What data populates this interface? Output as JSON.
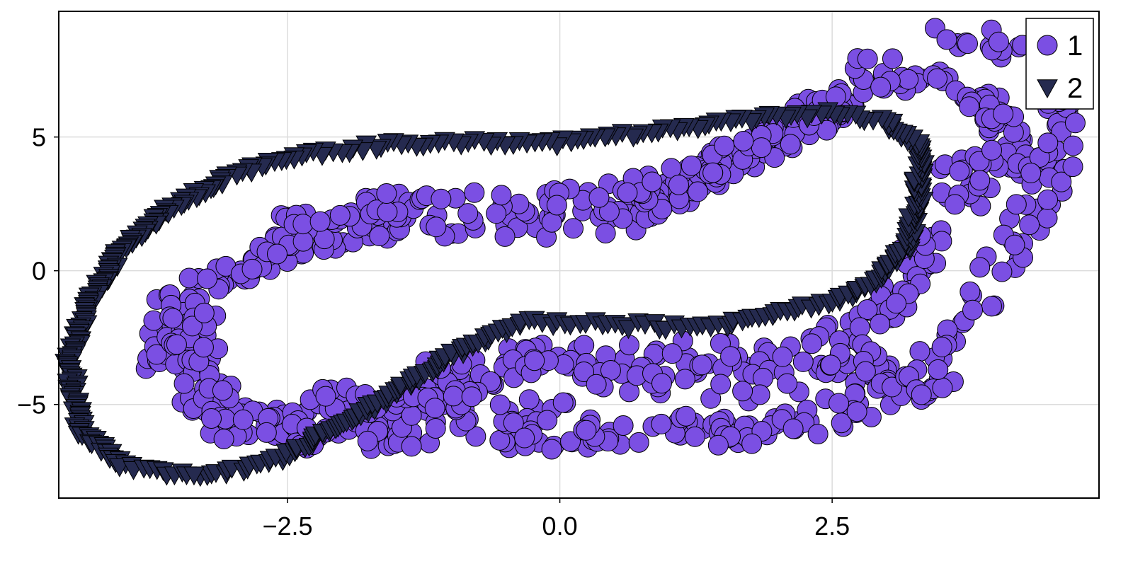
{
  "chart_data": {
    "type": "scatter",
    "title": "",
    "xlabel": "",
    "ylabel": "",
    "xlim": [
      -4.6,
      4.95
    ],
    "ylim": [
      -8.5,
      9.7
    ],
    "x_ticks": [
      -2.5,
      0.0,
      2.5
    ],
    "x_tick_labels": [
      "−2.5",
      "0.0",
      "2.5"
    ],
    "y_ticks": [
      -5,
      0,
      5
    ],
    "y_tick_labels": [
      "−5",
      "0",
      "5"
    ],
    "grid": true,
    "legend_position": "top-right",
    "series": [
      {
        "name": "1",
        "marker": "circle",
        "color": "#7b4fe3",
        "shapes": [
          {
            "kind": "band",
            "n": 240,
            "width": 0.35,
            "points": [
              [
                -3.6,
                -3.6
              ],
              [
                -3.6,
                -2.3
              ],
              [
                -3.5,
                -1.0
              ],
              [
                -3.0,
                0.0
              ],
              [
                -2.5,
                0.8
              ],
              [
                -1.8,
                1.5
              ],
              [
                -1.0,
                1.8
              ],
              [
                0.0,
                1.7
              ],
              [
                0.6,
                2.0
              ],
              [
                1.2,
                3.2
              ],
              [
                1.7,
                4.3
              ],
              [
                2.3,
                5.7
              ],
              [
                2.6,
                6.4
              ]
            ]
          },
          {
            "kind": "band",
            "n": 200,
            "width": 0.3,
            "points": [
              [
                -2.8,
                -0.3
              ],
              [
                -2.5,
                1.6
              ],
              [
                -2.0,
                2.2
              ],
              [
                -1.2,
                2.6
              ],
              [
                -0.3,
                2.6
              ],
              [
                0.5,
                2.9
              ],
              [
                1.1,
                3.5
              ],
              [
                1.7,
                4.6
              ],
              [
                2.2,
                5.8
              ],
              [
                2.7,
                6.7
              ],
              [
                3.3,
                7.3
              ],
              [
                3.8,
                6.6
              ],
              [
                4.1,
                5.2
              ],
              [
                4.3,
                3.6
              ]
            ]
          },
          {
            "kind": "band",
            "n": 90,
            "width": 0.3,
            "points": [
              [
                2.6,
                7.7
              ],
              [
                3.2,
                8.6
              ],
              [
                3.8,
                8.8
              ],
              [
                4.3,
                8.0
              ],
              [
                4.6,
                6.4
              ],
              [
                4.6,
                4.8
              ],
              [
                4.4,
                3.0
              ],
              [
                4.2,
                1.3
              ],
              [
                4.0,
                -0.4
              ],
              [
                3.8,
                -1.8
              ],
              [
                3.6,
                -2.6
              ],
              [
                3.4,
                -3.5
              ]
            ]
          },
          {
            "kind": "band",
            "n": 70,
            "width": 0.4,
            "points": [
              [
                3.8,
                4.5
              ],
              [
                3.7,
                2.7
              ],
              [
                3.4,
                0.8
              ],
              [
                3.1,
                -0.8
              ],
              [
                2.8,
                -2.0
              ],
              [
                2.5,
                -2.5
              ],
              [
                2.2,
                -2.8
              ]
            ]
          },
          {
            "kind": "band",
            "n": 160,
            "width": 0.35,
            "points": [
              [
                -3.4,
                -1.5
              ],
              [
                -3.3,
                -3.5
              ],
              [
                -3.2,
                -5.4
              ],
              [
                -2.5,
                -5.8
              ],
              [
                -1.5,
                -5.2
              ],
              [
                -0.5,
                -3.4
              ],
              [
                0.5,
                -3.1
              ],
              [
                1.5,
                -3.3
              ],
              [
                2.0,
                -3.0
              ]
            ]
          },
          {
            "kind": "band",
            "n": 90,
            "width": 0.6,
            "points": [
              [
                -1.4,
                -4.5
              ],
              [
                -0.5,
                -4.2
              ],
              [
                0.5,
                -4.2
              ],
              [
                1.5,
                -4.0
              ],
              [
                2.3,
                -3.7
              ],
              [
                2.9,
                -2.9
              ]
            ]
          },
          {
            "kind": "band",
            "n": 160,
            "width": 0.35,
            "points": [
              [
                -3.2,
                -5.8
              ],
              [
                -2.5,
                -6.1
              ],
              [
                -1.5,
                -6.2
              ],
              [
                -0.5,
                -6.1
              ],
              [
                0.5,
                -6.1
              ],
              [
                1.3,
                -6.0
              ],
              [
                1.9,
                -5.8
              ],
              [
                2.5,
                -5.4
              ],
              [
                3.0,
                -4.8
              ],
              [
                3.5,
                -3.7
              ]
            ]
          },
          {
            "kind": "band",
            "n": 40,
            "width": 0.3,
            "points": [
              [
                -2.2,
                -4.6
              ],
              [
                -1.8,
                -5.1
              ],
              [
                -1.2,
                -4.9
              ],
              [
                -0.6,
                -4.6
              ]
            ]
          }
        ]
      },
      {
        "name": "2",
        "marker": "triangle-down",
        "color": "#252a4f",
        "shapes": [
          {
            "kind": "loop",
            "n": 520,
            "width": 0.08,
            "points": [
              [
                -3.3,
                -7.7
              ],
              [
                -2.6,
                -7.1
              ],
              [
                -1.8,
                -5.3
              ],
              [
                -1.0,
                -3.2
              ],
              [
                -0.4,
                -2.0
              ],
              [
                0.0,
                -1.9
              ],
              [
                0.5,
                -2.0
              ],
              [
                1.0,
                -2.1
              ],
              [
                1.5,
                -2.0
              ],
              [
                2.0,
                -1.6
              ],
              [
                2.5,
                -1.2
              ],
              [
                2.9,
                -0.4
              ],
              [
                3.2,
                1.0
              ],
              [
                3.3,
                3.0
              ],
              [
                3.3,
                4.6
              ],
              [
                3.0,
                5.6
              ],
              [
                2.4,
                5.9
              ],
              [
                1.6,
                5.6
              ],
              [
                0.8,
                5.2
              ],
              [
                0.0,
                4.8
              ],
              [
                -0.8,
                4.8
              ],
              [
                -1.6,
                4.7
              ],
              [
                -2.4,
                4.3
              ],
              [
                -3.0,
                3.6
              ],
              [
                -3.6,
                2.3
              ],
              [
                -4.0,
                0.9
              ],
              [
                -4.3,
                -1.0
              ],
              [
                -4.5,
                -3.5
              ],
              [
                -4.4,
                -6.0
              ],
              [
                -4.0,
                -7.3
              ]
            ]
          }
        ]
      }
    ]
  }
}
